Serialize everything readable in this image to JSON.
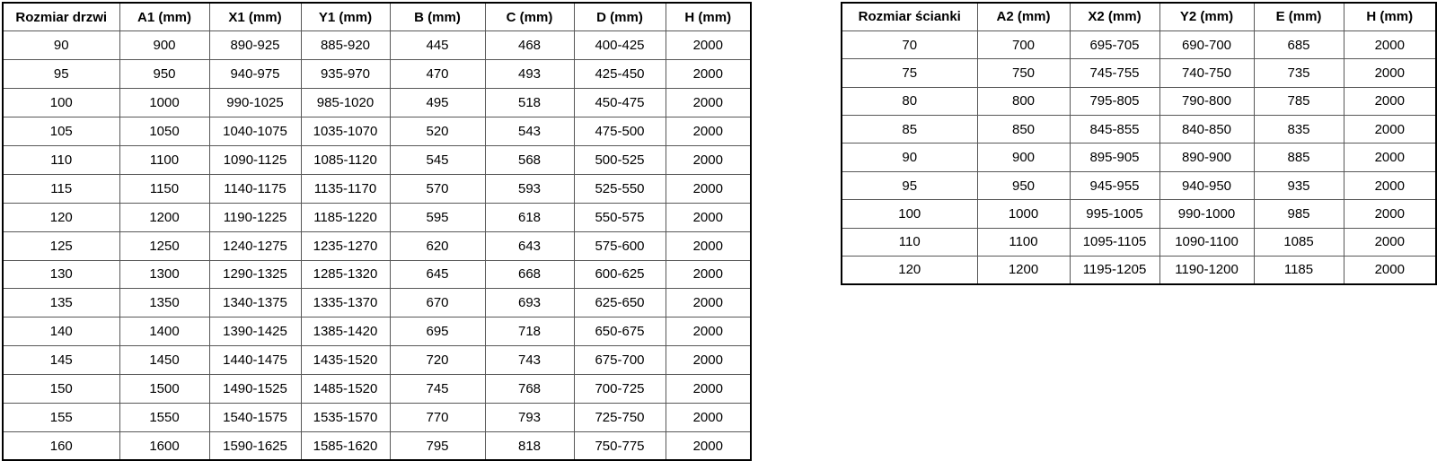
{
  "styles": {
    "border_outer": "#000000",
    "border_inner": "#575757",
    "text_color": "#000000",
    "background": "#ffffff"
  },
  "door_table": {
    "headers": [
      "Rozmiar drzwi",
      "A1 (mm)",
      "X1 (mm)",
      "Y1 (mm)",
      "B (mm)",
      "C (mm)",
      "D (mm)",
      "H (mm)"
    ],
    "rows": [
      [
        "90",
        "900",
        "890-925",
        "885-920",
        "445",
        "468",
        "400-425",
        "2000"
      ],
      [
        "95",
        "950",
        "940-975",
        "935-970",
        "470",
        "493",
        "425-450",
        "2000"
      ],
      [
        "100",
        "1000",
        "990-1025",
        "985-1020",
        "495",
        "518",
        "450-475",
        "2000"
      ],
      [
        "105",
        "1050",
        "1040-1075",
        "1035-1070",
        "520",
        "543",
        "475-500",
        "2000"
      ],
      [
        "110",
        "1100",
        "1090-1125",
        "1085-1120",
        "545",
        "568",
        "500-525",
        "2000"
      ],
      [
        "115",
        "1150",
        "1140-1175",
        "1135-1170",
        "570",
        "593",
        "525-550",
        "2000"
      ],
      [
        "120",
        "1200",
        "1190-1225",
        "1185-1220",
        "595",
        "618",
        "550-575",
        "2000"
      ],
      [
        "125",
        "1250",
        "1240-1275",
        "1235-1270",
        "620",
        "643",
        "575-600",
        "2000"
      ],
      [
        "130",
        "1300",
        "1290-1325",
        "1285-1320",
        "645",
        "668",
        "600-625",
        "2000"
      ],
      [
        "135",
        "1350",
        "1340-1375",
        "1335-1370",
        "670",
        "693",
        "625-650",
        "2000"
      ],
      [
        "140",
        "1400",
        "1390-1425",
        "1385-1420",
        "695",
        "718",
        "650-675",
        "2000"
      ],
      [
        "145",
        "1450",
        "1440-1475",
        "1435-1520",
        "720",
        "743",
        "675-700",
        "2000"
      ],
      [
        "150",
        "1500",
        "1490-1525",
        "1485-1520",
        "745",
        "768",
        "700-725",
        "2000"
      ],
      [
        "155",
        "1550",
        "1540-1575",
        "1535-1570",
        "770",
        "793",
        "725-750",
        "2000"
      ],
      [
        "160",
        "1600",
        "1590-1625",
        "1585-1620",
        "795",
        "818",
        "750-775",
        "2000"
      ]
    ]
  },
  "wall_table": {
    "headers": [
      "Rozmiar ścianki",
      "A2 (mm)",
      "X2 (mm)",
      "Y2 (mm)",
      "E (mm)",
      "H (mm)"
    ],
    "rows": [
      [
        "70",
        "700",
        "695-705",
        "690-700",
        "685",
        "2000"
      ],
      [
        "75",
        "750",
        "745-755",
        "740-750",
        "735",
        "2000"
      ],
      [
        "80",
        "800",
        "795-805",
        "790-800",
        "785",
        "2000"
      ],
      [
        "85",
        "850",
        "845-855",
        "840-850",
        "835",
        "2000"
      ],
      [
        "90",
        "900",
        "895-905",
        "890-900",
        "885",
        "2000"
      ],
      [
        "95",
        "950",
        "945-955",
        "940-950",
        "935",
        "2000"
      ],
      [
        "100",
        "1000",
        "995-1005",
        "990-1000",
        "985",
        "2000"
      ],
      [
        "110",
        "1100",
        "1095-1105",
        "1090-1100",
        "1085",
        "2000"
      ],
      [
        "120",
        "1200",
        "1195-1205",
        "1190-1200",
        "1185",
        "2000"
      ]
    ]
  }
}
